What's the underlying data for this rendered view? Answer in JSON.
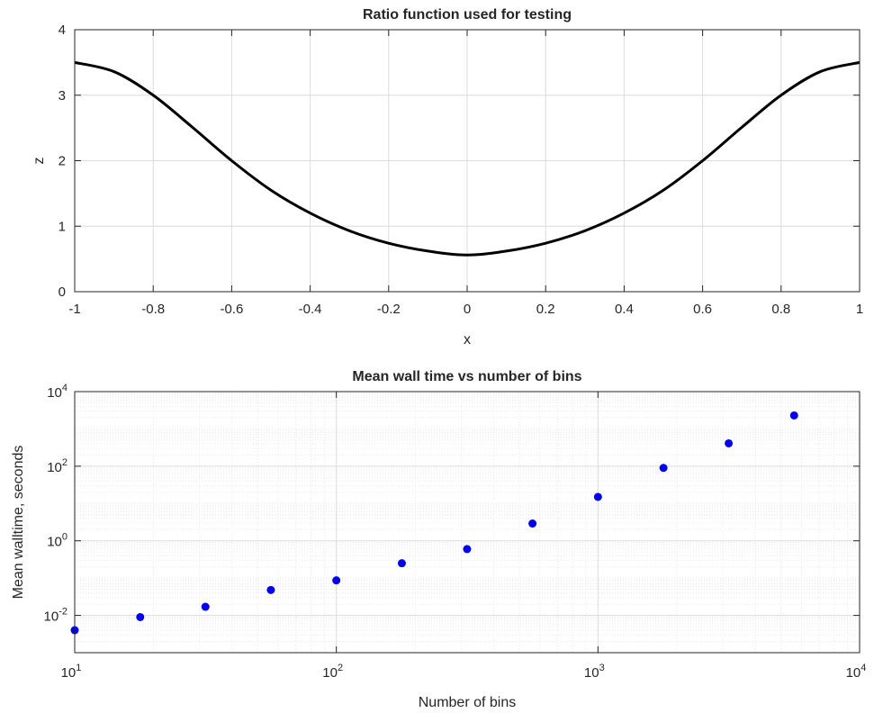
{
  "chart_data": [
    {
      "type": "line",
      "title": "Ratio function used for testing",
      "xlabel": "x",
      "ylabel": "z",
      "xlim": [
        -1,
        1
      ],
      "ylim": [
        0,
        4
      ],
      "xticks": [
        -1,
        -0.8,
        -0.6,
        -0.4,
        -0.2,
        0,
        0.2,
        0.4,
        0.6,
        0.8,
        1
      ],
      "xtick_labels": [
        "-1",
        "-0.8",
        "-0.6",
        "-0.4",
        "-0.2",
        "0",
        "0.2",
        "0.4",
        "0.6",
        "0.8",
        "1"
      ],
      "yticks": [
        0,
        1,
        2,
        3,
        4
      ],
      "ytick_labels": [
        "0",
        "1",
        "2",
        "3",
        "4"
      ],
      "grid": true,
      "line_color": "#000000",
      "x": [
        -1,
        -0.9,
        -0.8,
        -0.7,
        -0.6,
        -0.5,
        -0.4,
        -0.3,
        -0.2,
        -0.1,
        0,
        0.1,
        0.2,
        0.3,
        0.4,
        0.5,
        0.6,
        0.7,
        0.8,
        0.9,
        1
      ],
      "y": [
        3.5,
        3.36,
        3.0,
        2.51,
        2.0,
        1.55,
        1.2,
        0.93,
        0.74,
        0.62,
        0.56,
        0.62,
        0.74,
        0.93,
        1.2,
        1.55,
        2.0,
        2.51,
        3.0,
        3.36,
        3.5
      ]
    },
    {
      "type": "scatter",
      "title": "Mean wall time vs number of bins",
      "xlabel": "Number of bins",
      "ylabel": "Mean walltime, seconds",
      "xscale": "log",
      "yscale": "log",
      "xlim": [
        10,
        10000
      ],
      "ylim": [
        0.001,
        10000
      ],
      "xticks": [
        10,
        100,
        1000,
        10000
      ],
      "xtick_labels": [
        {
          "base": "10",
          "exp": "1"
        },
        {
          "base": "10",
          "exp": "2"
        },
        {
          "base": "10",
          "exp": "3"
        },
        {
          "base": "10",
          "exp": "4"
        }
      ],
      "yticks": [
        0.01,
        1,
        100,
        10000
      ],
      "ytick_labels": [
        {
          "base": "10",
          "exp": "-2"
        },
        {
          "base": "10",
          "exp": "0"
        },
        {
          "base": "10",
          "exp": "2"
        },
        {
          "base": "10",
          "exp": "4"
        }
      ],
      "grid": true,
      "marker_color": "#0000ee",
      "x": [
        10,
        17.8,
        31.6,
        56.2,
        100,
        178,
        316,
        562,
        1000,
        1780,
        3160,
        5620
      ],
      "y": [
        0.004,
        0.009,
        0.017,
        0.048,
        0.087,
        0.25,
        0.6,
        2.9,
        15,
        90,
        410,
        2300
      ]
    }
  ]
}
